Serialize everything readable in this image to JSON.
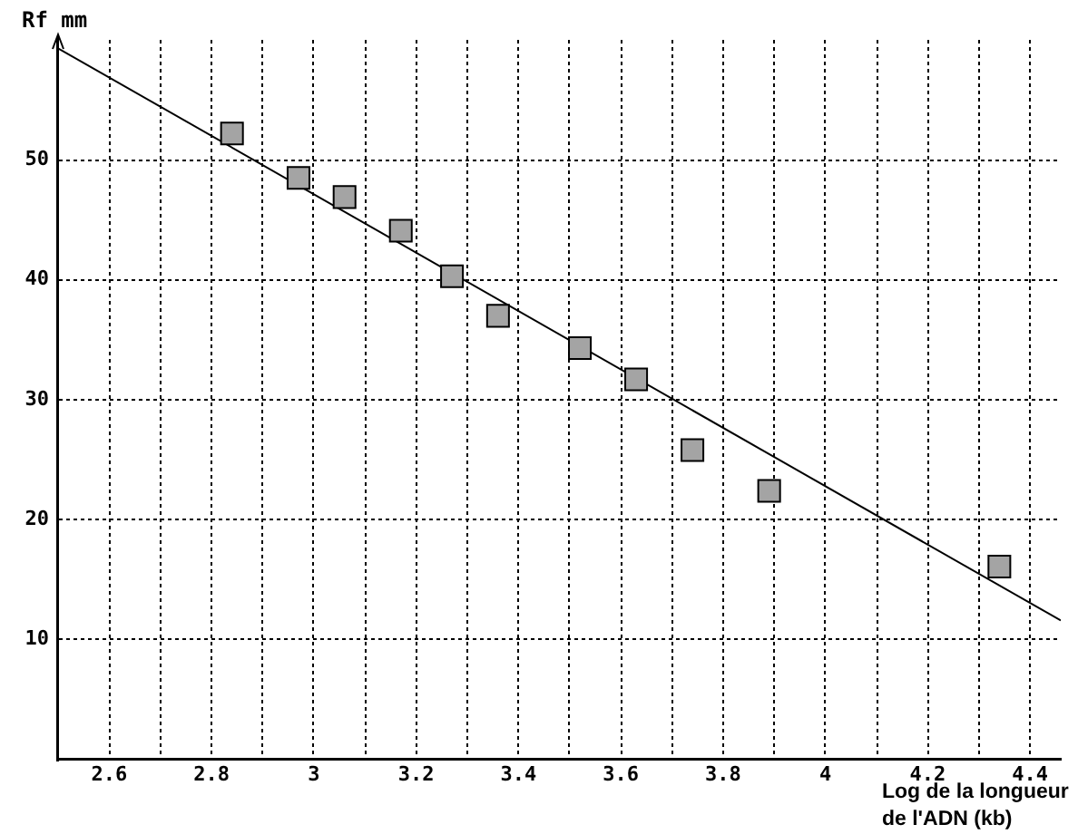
{
  "chart_data": {
    "type": "scatter",
    "xlabel": "Log de la longueur de l'ADN (kb)",
    "ylabel": "Rf mm",
    "series": [
      {
        "color": "#a4a4a4",
        "marker": "square",
        "x": [
          2.84,
          2.97,
          3.06,
          3.17,
          3.27,
          3.36,
          3.52,
          3.63,
          3.74,
          3.89,
          4.34
        ],
        "values": [
          52.2,
          48.5,
          46.9,
          44.1,
          40.3,
          37.0,
          34.3,
          31.7,
          25.8,
          22.4,
          16.1
        ]
      },
      {
        "type": "line",
        "color": "#000000",
        "marker": "none",
        "line_style": "solid",
        "x": [
          2.5,
          4.46
        ],
        "values": [
          59.3,
          11.6
        ]
      }
    ],
    "xlim": [
      2.5,
      4.46
    ],
    "xticks": [
      2.6,
      {
        "value": 2.7,
        "label": null
      },
      2.8,
      {
        "value": 2.9,
        "label": null
      },
      3,
      {
        "value": 3.1,
        "label": null
      },
      3.2,
      {
        "value": 3.3,
        "label": null
      },
      3.4,
      {
        "value": 3.5,
        "label": null
      },
      3.6,
      {
        "value": 3.7,
        "label": null
      },
      3.8,
      {
        "value": 3.9,
        "label": null
      },
      4,
      {
        "value": 4.1,
        "label": null
      },
      4.2,
      {
        "value": 4.3,
        "label": null
      },
      4.4
    ],
    "ylim": [
      0,
      60
    ],
    "yticks": [
      10,
      20,
      30,
      40,
      50
    ],
    "grid": true
  }
}
